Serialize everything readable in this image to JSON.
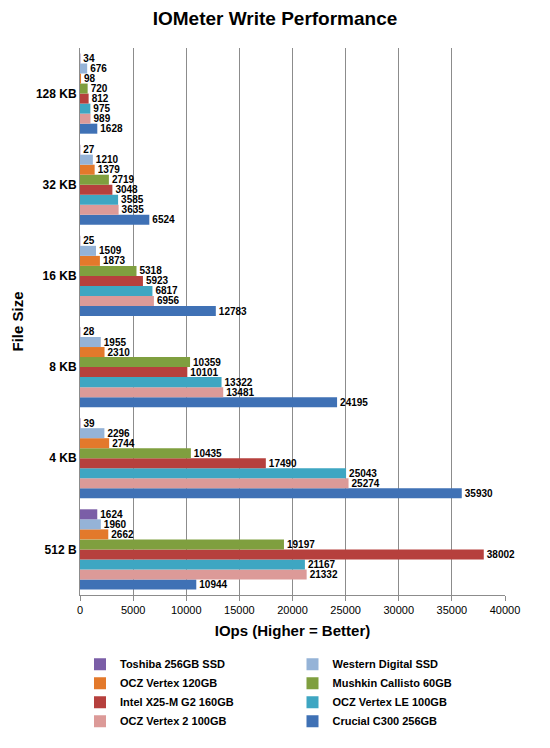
{
  "chart_data": {
    "type": "bar",
    "orientation": "horizontal",
    "title": "IOMeter Write Performance",
    "x_label": "IOps (Higher = Better)",
    "y_label": "File Size",
    "categories": [
      "512 B",
      "4 KB",
      "8 KB",
      "16 KB",
      "32 KB",
      "128 KB"
    ],
    "series": [
      {
        "name": "Toshiba 256GB SSD",
        "color": "#7b5ea7",
        "values": [
          1624,
          39,
          28,
          25,
          27,
          34
        ]
      },
      {
        "name": "Western Digital SSD",
        "color": "#95b3d7",
        "values": [
          1960,
          2296,
          1955,
          1509,
          1210,
          676
        ]
      },
      {
        "name": "OCZ Vertex 120GB",
        "color": "#e3792b",
        "values": [
          2662,
          2744,
          2310,
          1873,
          1379,
          98
        ]
      },
      {
        "name": "Mushkin Callisto 60GB",
        "color": "#7f9f3f",
        "values": [
          19197,
          10435,
          10359,
          5318,
          2719,
          720
        ]
      },
      {
        "name": "Intel X25-M G2 160GB",
        "color": "#b6403d",
        "values": [
          38002,
          17490,
          10101,
          5923,
          3048,
          812
        ]
      },
      {
        "name": "OCZ Vertex LE 100GB",
        "color": "#3ea6c2",
        "values": [
          21167,
          25043,
          13322,
          6817,
          3585,
          975
        ]
      },
      {
        "name": "OCZ Vertex 2 100GB",
        "color": "#dc9a98",
        "values": [
          21332,
          25274,
          13481,
          6956,
          3635,
          989
        ]
      },
      {
        "name": "Crucial C300 256GB",
        "color": "#3f71b5",
        "values": [
          10944,
          35930,
          24195,
          12783,
          6524,
          1628
        ]
      }
    ],
    "xlim": [
      0,
      40000
    ],
    "xticks": [
      0,
      5000,
      10000,
      15000,
      20000,
      25000,
      30000,
      35000,
      40000
    ],
    "grid": true,
    "data_labels": true,
    "legend": "bottom"
  }
}
